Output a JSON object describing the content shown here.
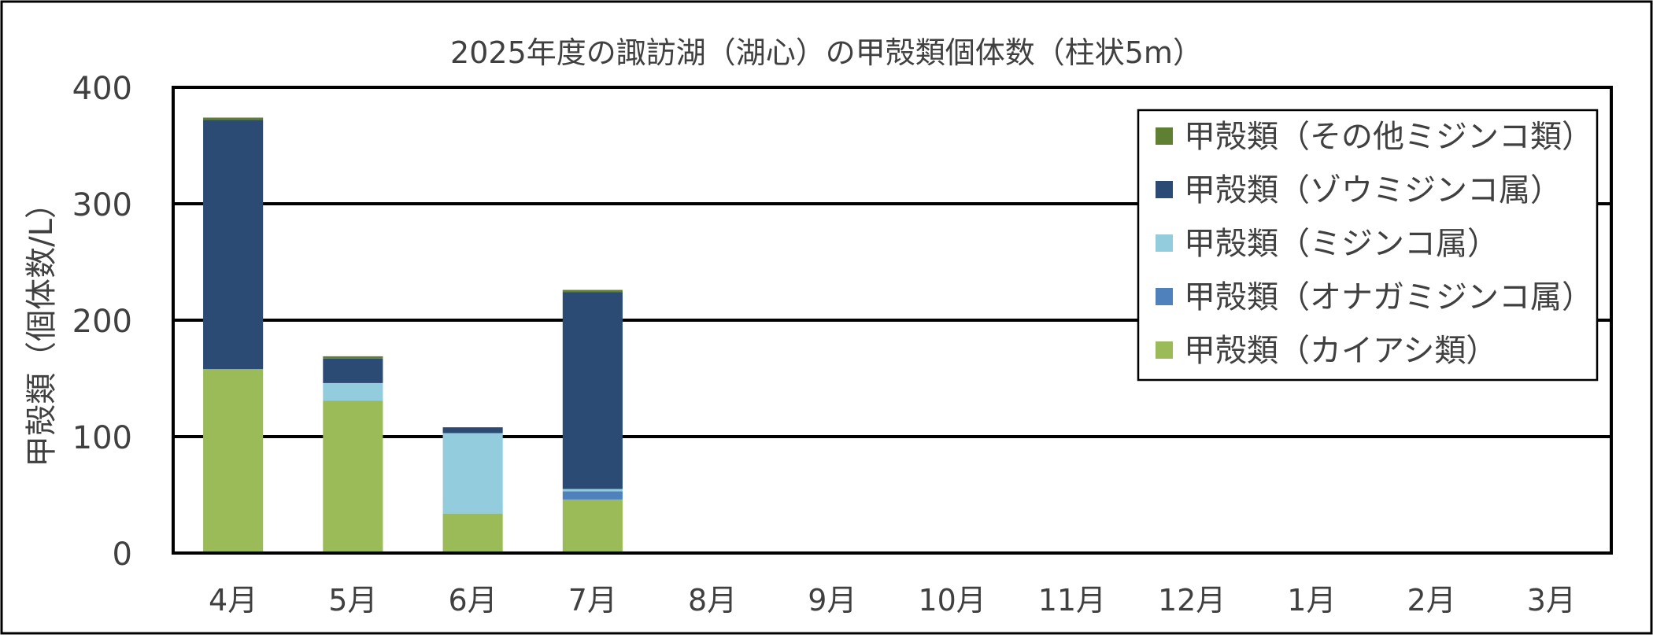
{
  "chart_data": {
    "type": "bar",
    "stacked": true,
    "title": "2025年度の諏訪湖（湖心）の甲殻類個体数（柱状5m）",
    "ylabel": "甲殻類（個体数/L）",
    "xlabel": "",
    "ylim": [
      0,
      400
    ],
    "yticks": [
      "0",
      "100",
      "200",
      "300",
      "400"
    ],
    "grid": true,
    "legend_position": "top-right",
    "categories": [
      "4月",
      "5月",
      "6月",
      "7月",
      "8月",
      "9月",
      "10月",
      "11月",
      "12月",
      "1月",
      "2月",
      "3月"
    ],
    "series": [
      {
        "name": "甲殻類（カイアシ類）",
        "color": "#9bbb59",
        "values": [
          158,
          131,
          34,
          46,
          0,
          0,
          0,
          0,
          0,
          0,
          0,
          0
        ]
      },
      {
        "name": "甲殻類（オナガミジンコ属）",
        "color": "#4f81bd",
        "values": [
          0,
          0,
          0,
          7,
          0,
          0,
          0,
          0,
          0,
          0,
          0,
          0
        ]
      },
      {
        "name": "甲殻類（ミジンコ属）",
        "color": "#93cddd",
        "values": [
          0,
          15,
          69,
          2,
          0,
          0,
          0,
          0,
          0,
          0,
          0,
          0
        ]
      },
      {
        "name": "甲殻類（ゾウミジンコ属）",
        "color": "#2c4b74",
        "values": [
          214,
          21,
          5,
          169,
          0,
          0,
          0,
          0,
          0,
          0,
          0,
          0
        ]
      },
      {
        "name": "甲殻類（その他ミジンコ類）",
        "color": "#5f7f33",
        "values": [
          2,
          2,
          0,
          2,
          0,
          0,
          0,
          0,
          0,
          0,
          0,
          0
        ]
      }
    ],
    "legend_order": [
      "甲殻類（その他ミジンコ類）",
      "甲殻類（ゾウミジンコ属）",
      "甲殻類（ミジンコ属）",
      "甲殻類（オナガミジンコ属）",
      "甲殻類（カイアシ類）"
    ]
  }
}
